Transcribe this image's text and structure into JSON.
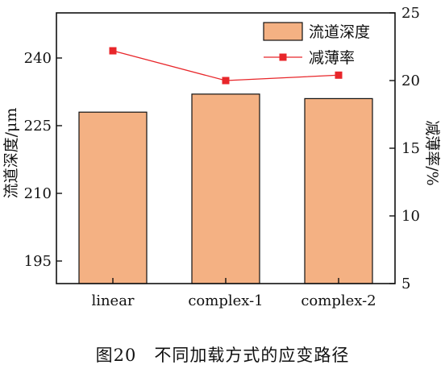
{
  "chart_data": {
    "type": "bar",
    "categories": [
      "linear",
      "complex-1",
      "complex-2"
    ],
    "series": [
      {
        "name": "流道深度",
        "type": "bar",
        "axis": "left",
        "values": [
          228,
          232,
          231
        ],
        "color": "#f4b183"
      },
      {
        "name": "减薄率",
        "type": "line",
        "axis": "right",
        "values": [
          22.2,
          20.0,
          20.4
        ],
        "color": "#e8262a"
      }
    ],
    "ylabel": "流道深度/μm",
    "y2label": "减薄率/%",
    "ylim": [
      190,
      250
    ],
    "y2lim": [
      5,
      25
    ],
    "yticks": [
      195,
      210,
      225,
      240
    ],
    "y2ticks": [
      5,
      10,
      15,
      20,
      25
    ],
    "legend": "top-right",
    "grid": false
  },
  "caption": "图20　不同加载方式的应变路径"
}
